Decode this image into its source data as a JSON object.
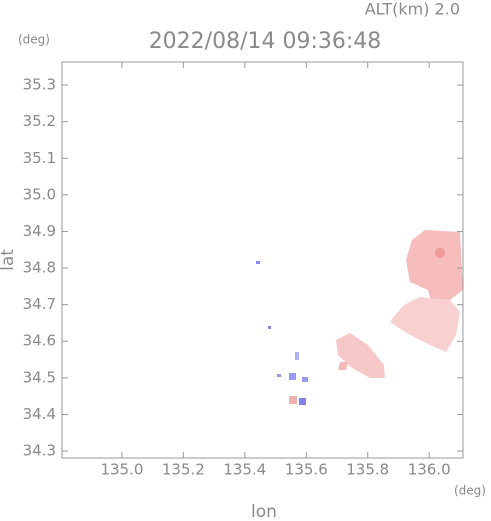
{
  "chart_data": {
    "type": "map",
    "title": "2022/08/14 09:36:48",
    "altitude_label": "ALT(km) 2.0",
    "y_unit": "(deg)",
    "x_unit": "(deg)",
    "xlabel": "lon",
    "ylabel": "lat",
    "xlim": [
      134.805,
      136.11
    ],
    "ylim": [
      34.281,
      35.363
    ],
    "xticks": [
      {
        "value": 135.0,
        "label": "135.0"
      },
      135.2,
      135.4,
      135.6,
      135.8,
      {
        "value": 136.0,
        "label": "136.0"
      }
    ],
    "yticks": [
      35.3,
      35.2,
      35.1,
      {
        "value": 35.0,
        "label": "35.0"
      },
      34.9,
      34.8,
      34.7,
      34.6,
      34.5,
      34.4,
      34.3
    ]
  }
}
